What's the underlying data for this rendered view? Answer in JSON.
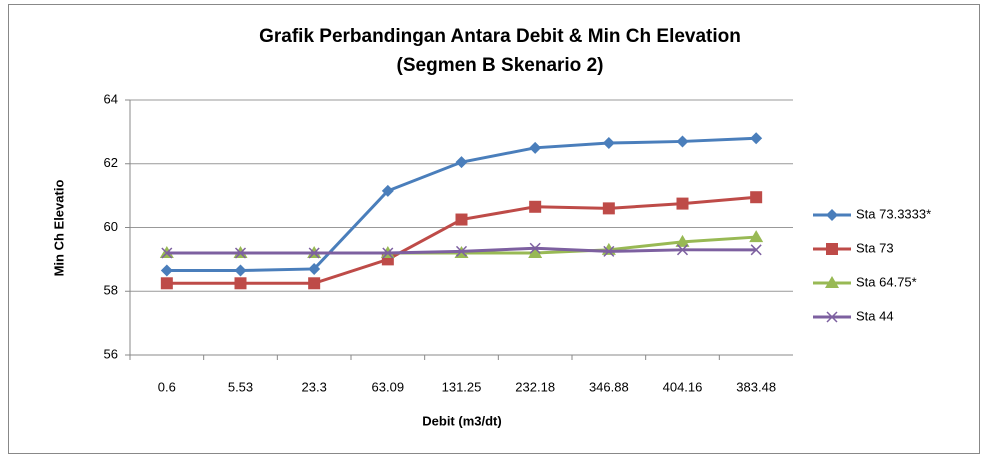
{
  "chart_data": {
    "type": "line",
    "title": "Grafik Perbandingan Antara Debit & Min Ch Elevation",
    "subtitle": "(Segmen  B Skenario 2)",
    "x_label": "Debit (m3/dt)",
    "y_label": "Min Ch Elevatio",
    "categories": [
      "0.6",
      "5.53",
      "23.3",
      "63.09",
      "131.25",
      "232.18",
      "346.88",
      "404.16",
      "383.48"
    ],
    "series": [
      {
        "name": "Sta 73.3333*",
        "color": "#4a7ebb",
        "marker": "diamond",
        "values": [
          58.65,
          58.65,
          58.7,
          61.15,
          62.05,
          62.5,
          62.65,
          62.7,
          62.8
        ]
      },
      {
        "name": "Sta 73",
        "color": "#be4b48",
        "marker": "square",
        "values": [
          58.25,
          58.25,
          58.25,
          59.0,
          60.25,
          60.65,
          60.6,
          60.75,
          60.95
        ]
      },
      {
        "name": "Sta 64.75*",
        "color": "#98b954",
        "marker": "triangle",
        "values": [
          59.2,
          59.2,
          59.2,
          59.2,
          59.2,
          59.2,
          59.3,
          59.55,
          59.7
        ]
      },
      {
        "name": "Sta 44",
        "color": "#7d60a0",
        "marker": "x",
        "values": [
          59.2,
          59.2,
          59.2,
          59.2,
          59.25,
          59.35,
          59.25,
          59.3,
          59.3
        ]
      }
    ],
    "ylim": [
      56,
      64
    ],
    "yticks": [
      56,
      58,
      60,
      62,
      64
    ],
    "grid": true,
    "legend": "right"
  }
}
